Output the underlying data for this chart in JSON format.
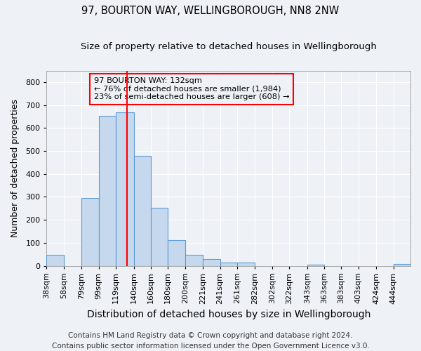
{
  "title": "97, BOURTON WAY, WELLINGBOROUGH, NN8 2NW",
  "subtitle": "Size of property relative to detached houses in Wellingborough",
  "xlabel": "Distribution of detached houses by size in Wellingborough",
  "ylabel": "Number of detached properties",
  "bin_labels": [
    "38sqm",
    "58sqm",
    "79sqm",
    "99sqm",
    "119sqm",
    "140sqm",
    "160sqm",
    "180sqm",
    "200sqm",
    "221sqm",
    "241sqm",
    "261sqm",
    "282sqm",
    "302sqm",
    "322sqm",
    "343sqm",
    "363sqm",
    "383sqm",
    "403sqm",
    "424sqm",
    "444sqm"
  ],
  "bin_edges": [
    38,
    58,
    79,
    99,
    119,
    140,
    160,
    180,
    200,
    221,
    241,
    261,
    282,
    302,
    322,
    343,
    363,
    383,
    403,
    424,
    444
  ],
  "bar_values": [
    48,
    0,
    295,
    652,
    668,
    480,
    253,
    113,
    48,
    28,
    15,
    13,
    0,
    0,
    0,
    5,
    0,
    0,
    0,
    0,
    8
  ],
  "bar_color": "#c5d8ed",
  "bar_edge_color": "#5b9bd5",
  "vline_x": 132,
  "vline_color": "red",
  "annotation_title": "97 BOURTON WAY: 132sqm",
  "annotation_line1": "← 76% of detached houses are smaller (1,984)",
  "annotation_line2": "23% of semi-detached houses are larger (608) →",
  "annotation_box_color": "red",
  "annotation_text_color": "black",
  "footer_line1": "Contains HM Land Registry data © Crown copyright and database right 2024.",
  "footer_line2": "Contains public sector information licensed under the Open Government Licence v3.0.",
  "ylim": [
    0,
    850
  ],
  "background_color": "#eef2f7",
  "grid_color": "white",
  "title_fontsize": 10.5,
  "subtitle_fontsize": 9.5,
  "xlabel_fontsize": 10,
  "ylabel_fontsize": 9,
  "tick_fontsize": 8,
  "footer_fontsize": 7.5
}
